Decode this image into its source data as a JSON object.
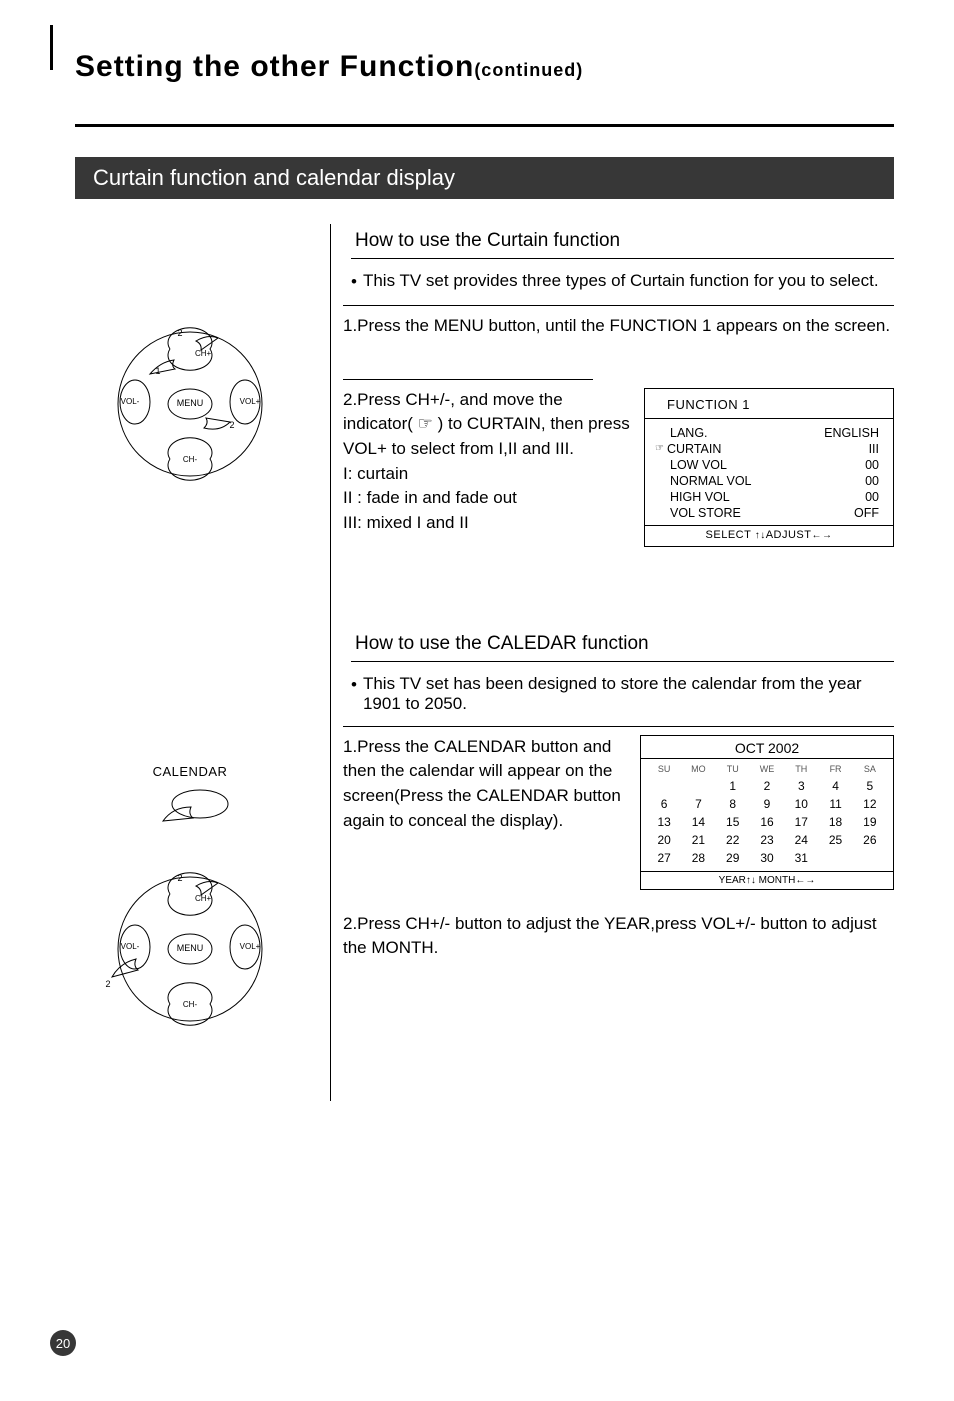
{
  "page": {
    "title_main": "Setting the other Function",
    "title_cont": "(continued)",
    "page_number": "20"
  },
  "section_banner": "Curtain function and calendar display",
  "curtain": {
    "subtitle": "How to use the Curtain function",
    "bullet": "This TV set provides three types of Curtain function for you to select.",
    "step1": "1.Press the MENU button, until the FUNCTION 1 appears on the screen.",
    "step2": "2.Press CH+/-, and move the indicator( ☞ ) to CURTAIN, then press VOL+ to select from I,II and III.\nI: curtain\nII : fade in and fade out\nIII: mixed I and II"
  },
  "function1_osd": {
    "title": "FUNCTION 1",
    "rows": [
      {
        "key": "LANG.",
        "val": "ENGLISH",
        "indicator": false
      },
      {
        "key": "CURTAIN",
        "val": "III",
        "indicator": true
      },
      {
        "key": "LOW VOL",
        "val": "00",
        "indicator": false
      },
      {
        "key": "NORMAL VOL",
        "val": "00",
        "indicator": false
      },
      {
        "key": "HIGH  VOL",
        "val": "00",
        "indicator": false
      },
      {
        "key": "VOL STORE",
        "val": "OFF",
        "indicator": false
      }
    ],
    "footer_select": "SELECT",
    "footer_adjust": "ADJUST"
  },
  "calendar": {
    "subtitle": "How to use the CALEDAR function",
    "bullet": "This TV set has been designed to store the calendar from the year 1901 to 2050.",
    "step1": "1.Press the CALENDAR button and then the calendar will appear on the screen(Press the CALENDAR button again to conceal the display).",
    "step2": "2.Press CH+/- button to adjust the YEAR,press VOL+/- button to adjust the MONTH."
  },
  "calendar_osd": {
    "title": "OCT 2002",
    "headers": [
      "SU",
      "MO",
      "TU",
      "WE",
      "TH",
      "FR",
      "SA"
    ],
    "rows": [
      [
        "",
        "",
        "1",
        "2",
        "3",
        "4",
        "5"
      ],
      [
        "6",
        "7",
        "8",
        "9",
        "10",
        "11",
        "12"
      ],
      [
        "13",
        "14",
        "15",
        "16",
        "17",
        "18",
        "19"
      ],
      [
        "20",
        "21",
        "22",
        "23",
        "24",
        "25",
        "26"
      ],
      [
        "27",
        "28",
        "29",
        "30",
        "31",
        "",
        ""
      ]
    ],
    "footer_year": "YEAR",
    "footer_month": "MONTH"
  },
  "figure_labels": {
    "ch_plus": "CH+",
    "ch_minus": "CH-",
    "vol_plus": "VOL+",
    "vol_minus": "VOL-",
    "menu": "MENU",
    "n1": "1",
    "n2": "2",
    "calendar_btn": "CALENDAR"
  }
}
